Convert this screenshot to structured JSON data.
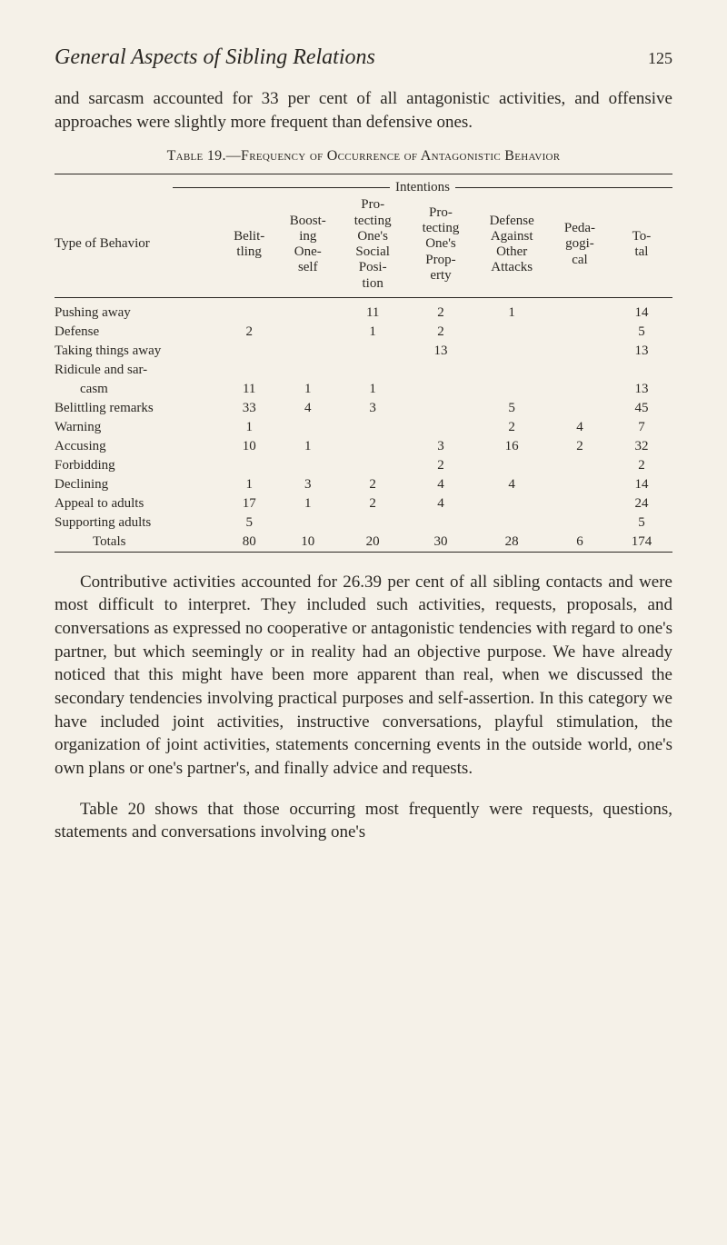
{
  "colors": {
    "background": "#f5f1e8",
    "text": "#2a2722",
    "rule": "#2a2722"
  },
  "typography": {
    "body_family": "Georgia, Times New Roman, serif",
    "body_size_pt": 14,
    "title_size_pt": 18,
    "table_size_pt": 11
  },
  "header": {
    "running_title": "General Aspects of Sibling Relations",
    "page_number": "125"
  },
  "para1": "and sarcasm accounted for 33 per cent of all antagonistic activities, and offensive approaches were slightly more frequent than defensive ones.",
  "table": {
    "caption": "Table 19.—Frequency of Occurrence of Antagonistic Behavior",
    "intentions_label": "Intentions",
    "columns": {
      "c0": "Type of Behavior",
      "c1": "Belit-\ntling",
      "c2": "Boost-\ning\nOne-\nself",
      "c3": "Pro-\ntecting\nOne's\nSocial\nPosi-\ntion",
      "c4": "Pro-\ntecting\nOne's\nProp-\nerty",
      "c5": "Defense\nAgainst\nOther\nAttacks",
      "c6": "Peda-\ngogi-\ncal",
      "c7": "To-\ntal"
    },
    "rows": [
      {
        "label": "Pushing away",
        "c1": "",
        "c2": "",
        "c3": "11",
        "c4": "2",
        "c5": "1",
        "c6": "",
        "c7": "14"
      },
      {
        "label": "Defense",
        "c1": "2",
        "c2": "",
        "c3": "1",
        "c4": "2",
        "c5": "",
        "c6": "",
        "c7": "5"
      },
      {
        "label": "Taking things away",
        "c1": "",
        "c2": "",
        "c3": "",
        "c4": "13",
        "c5": "",
        "c6": "",
        "c7": "13"
      },
      {
        "label": "Ridicule and sar-",
        "c1": "",
        "c2": "",
        "c3": "",
        "c4": "",
        "c5": "",
        "c6": "",
        "c7": ""
      },
      {
        "label": "casm",
        "indent": true,
        "c1": "11",
        "c2": "1",
        "c3": "1",
        "c4": "",
        "c5": "",
        "c6": "",
        "c7": "13"
      },
      {
        "label": "Belittling remarks",
        "c1": "33",
        "c2": "4",
        "c3": "3",
        "c4": "",
        "c5": "5",
        "c6": "",
        "c7": "45"
      },
      {
        "label": "Warning",
        "c1": "1",
        "c2": "",
        "c3": "",
        "c4": "",
        "c5": "2",
        "c6": "4",
        "c7": "7"
      },
      {
        "label": "Accusing",
        "c1": "10",
        "c2": "1",
        "c3": "",
        "c4": "3",
        "c5": "16",
        "c6": "2",
        "c7": "32"
      },
      {
        "label": "Forbidding",
        "c1": "",
        "c2": "",
        "c3": "",
        "c4": "2",
        "c5": "",
        "c6": "",
        "c7": "2"
      },
      {
        "label": "Declining",
        "c1": "1",
        "c2": "3",
        "c3": "2",
        "c4": "4",
        "c5": "4",
        "c6": "",
        "c7": "14"
      },
      {
        "label": "Appeal to adults",
        "c1": "17",
        "c2": "1",
        "c3": "2",
        "c4": "4",
        "c5": "",
        "c6": "",
        "c7": "24"
      },
      {
        "label": "Supporting adults",
        "c1": "5",
        "c2": "",
        "c3": "",
        "c4": "",
        "c5": "",
        "c6": "",
        "c7": "5"
      },
      {
        "label": "Totals",
        "totals": true,
        "c1": "80",
        "c2": "10",
        "c3": "20",
        "c4": "30",
        "c5": "28",
        "c6": "6",
        "c7": "174"
      }
    ]
  },
  "para2": "Contributive activities accounted for 26.39 per cent of all sibling contacts and were most difficult to interpret. They included such activities, requests, proposals, and conversations as expressed no cooperative or antagonistic tendencies with regard to one's partner, but which seemingly or in reality had an objective purpose. We have already noticed that this might have been more apparent than real, when we discussed the secondary tendencies involving practical purposes and self-assertion. In this category we have included joint activities, instructive conversations, playful stimulation, the organization of joint activities, statements concerning events in the outside world, one's own plans or one's partner's, and finally advice and requests.",
  "para3": "Table 20 shows that those occurring most frequently were requests, questions, statements and conversations involving one's"
}
